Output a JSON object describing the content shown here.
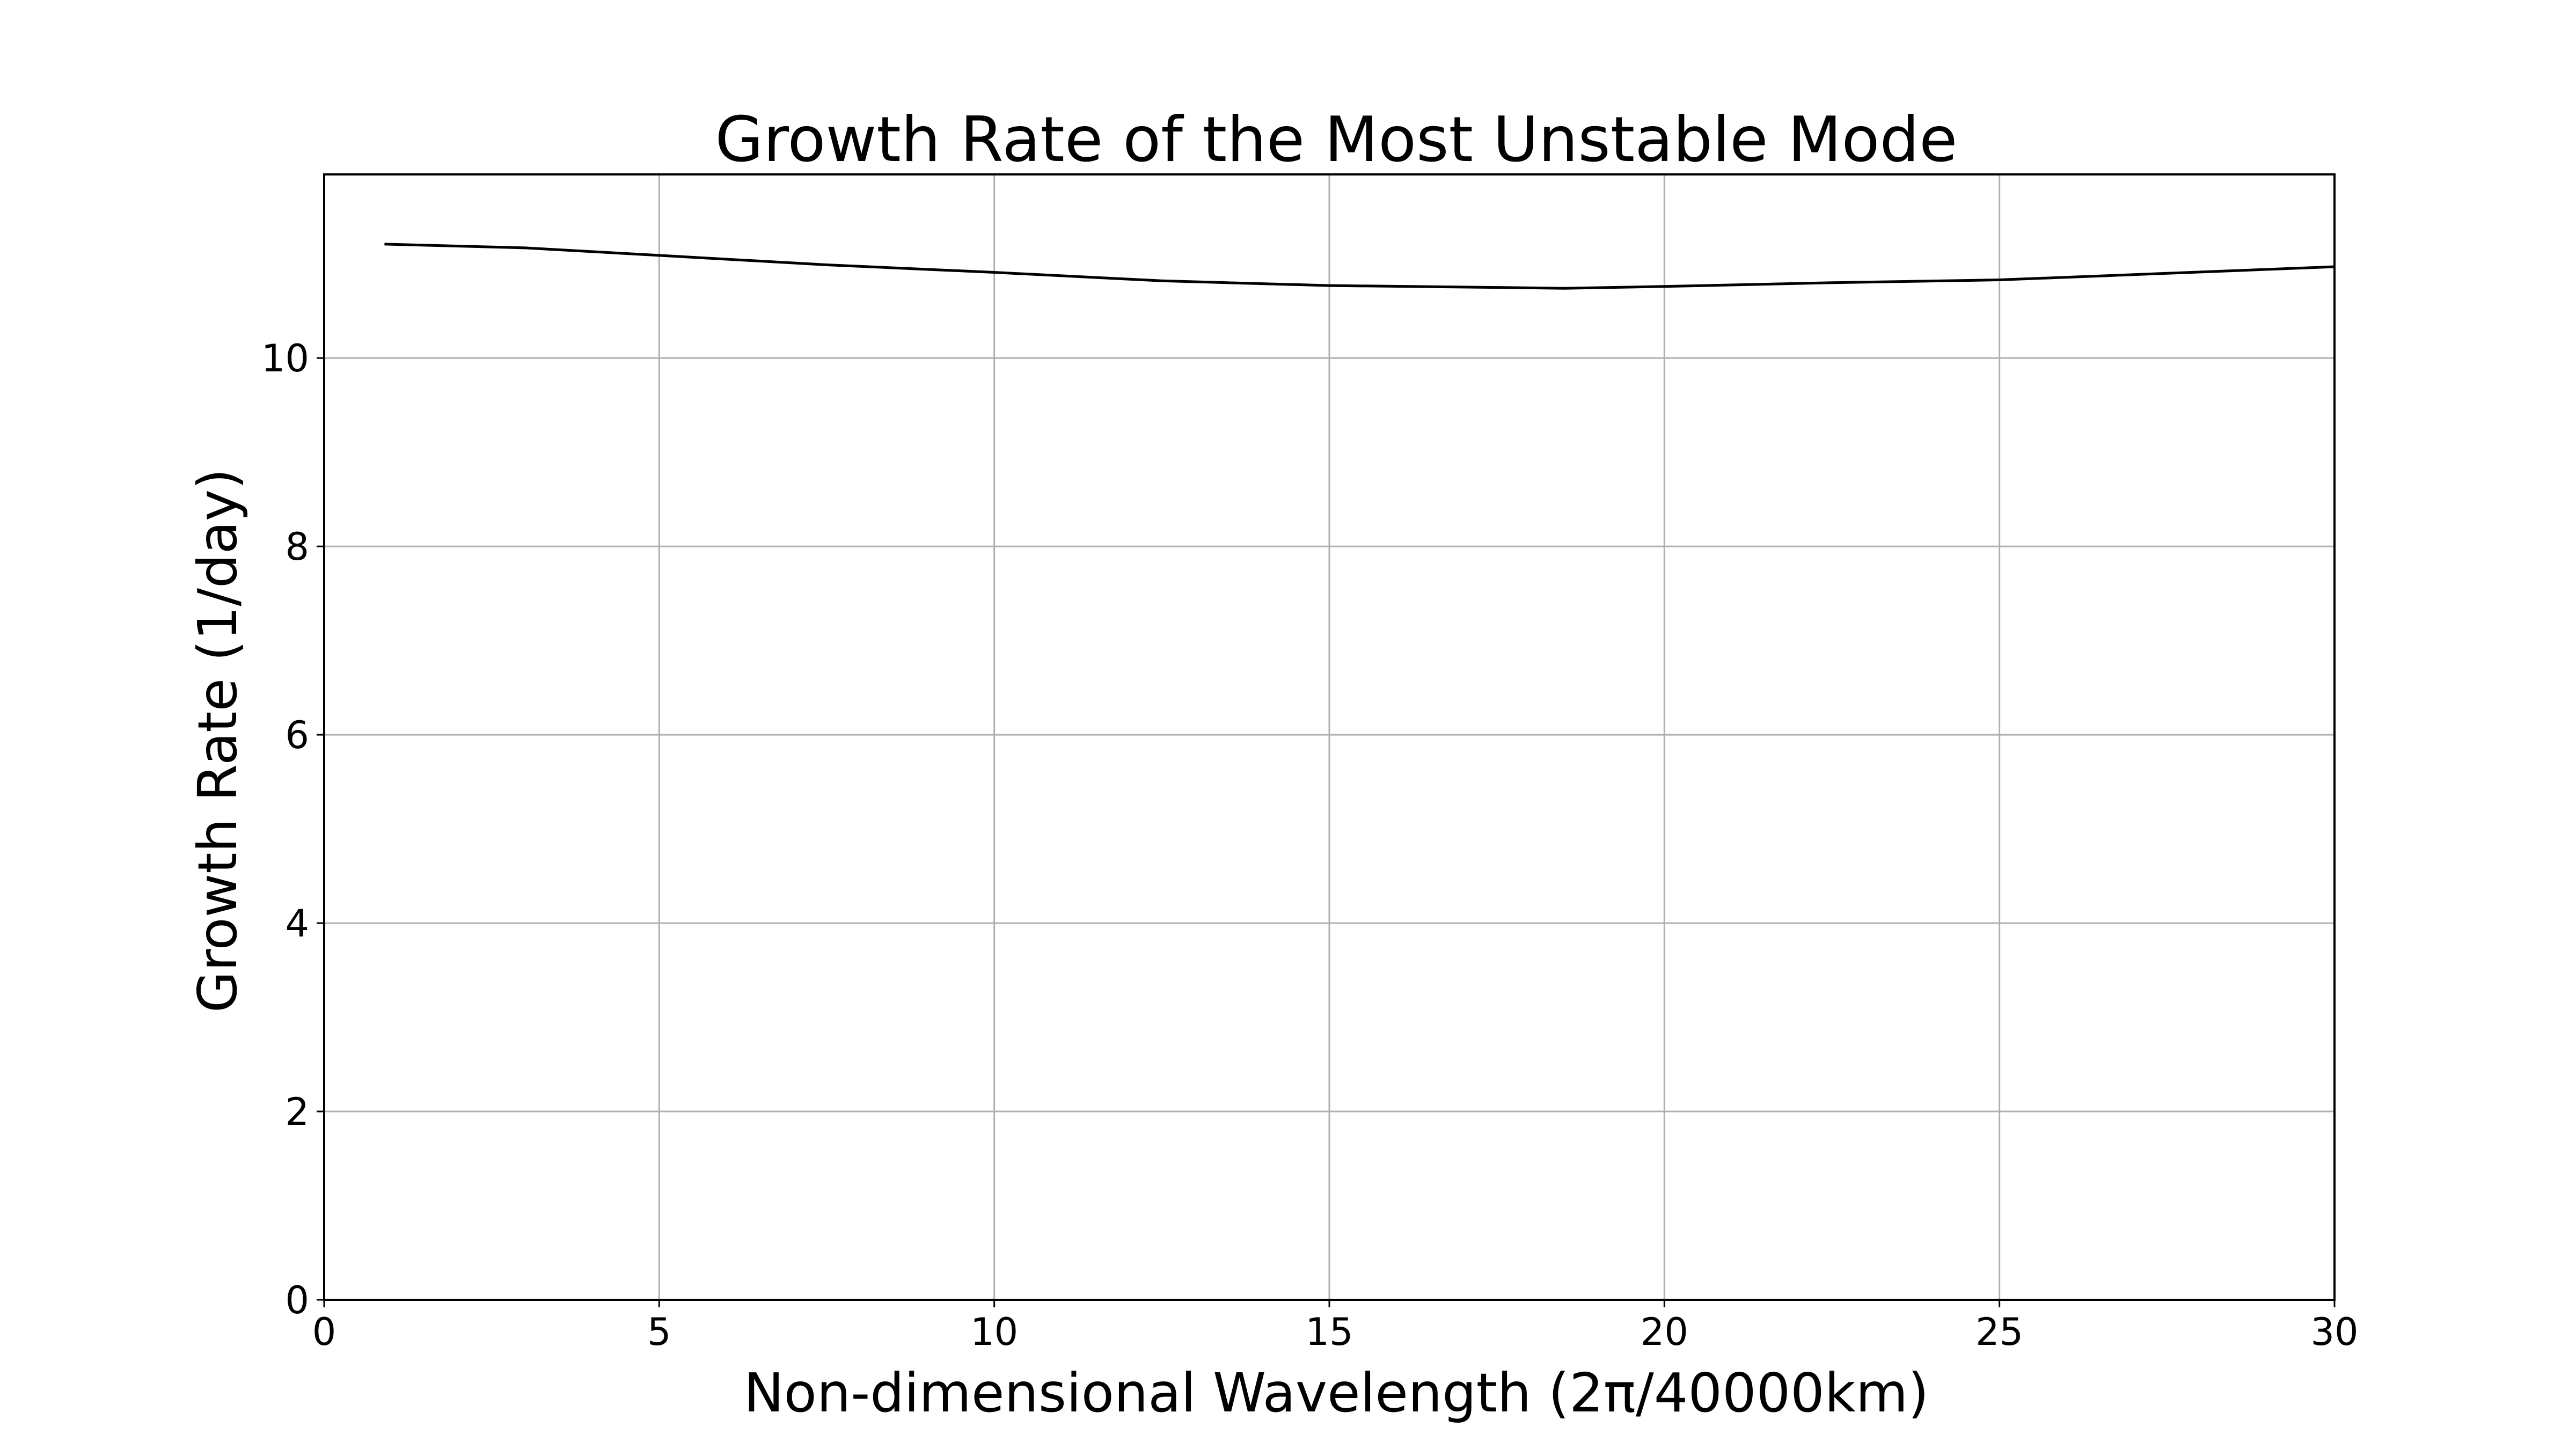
{
  "chart_data": {
    "type": "line",
    "title": "Growth Rate of the Most Unstable Mode",
    "xlabel": "Non-dimensional Wavelength (2π/40000km)",
    "ylabel": "Growth Rate (1/day)",
    "xlim": [
      0,
      30
    ],
    "ylim": [
      0,
      11.95
    ],
    "xticks": [
      0,
      5,
      10,
      15,
      20,
      25,
      30
    ],
    "yticks": [
      0,
      2,
      4,
      6,
      8,
      10
    ],
    "grid": true,
    "series": [
      {
        "color": "#000000",
        "x": [
          0.9,
          3,
          5,
          7.5,
          10,
          12.5,
          15,
          17.5,
          18.5,
          20,
          22.5,
          25,
          27.5,
          30
        ],
        "y": [
          11.21,
          11.17,
          11.09,
          10.99,
          10.91,
          10.82,
          10.77,
          10.75,
          10.74,
          10.76,
          10.8,
          10.83,
          10.9,
          10.97
        ]
      }
    ]
  }
}
